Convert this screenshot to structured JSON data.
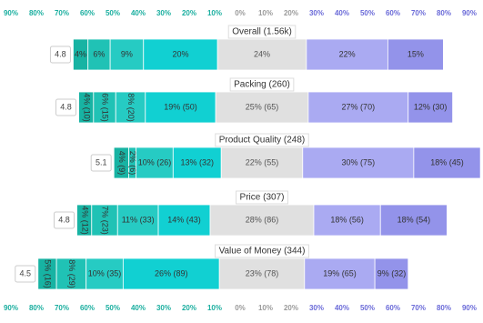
{
  "chart_data": {
    "type": "diverging-bar",
    "categories": [
      "Overall (1.56k)",
      "Packing (260)",
      "Product Quality (248)",
      "Price (307)",
      "Value of Money (344)"
    ],
    "scores": [
      4.8,
      4.8,
      5.1,
      4.8,
      4.5
    ],
    "series": [
      {
        "color": "#17b3a3",
        "values": [
          4,
          4,
          4,
          4,
          5
        ],
        "value_labels": [
          "4%",
          "4% (10)",
          "4% (9)",
          "4% (12)",
          "5% (16)"
        ]
      },
      {
        "color": "#20c2b5",
        "values": [
          6,
          6,
          2,
          7,
          8
        ],
        "value_labels": [
          "6%",
          "6% (15)",
          "2% (6)",
          "7% (23)",
          "8% (29)"
        ]
      },
      {
        "color": "#26cbc3",
        "values": [
          9,
          8,
          10,
          11,
          10
        ],
        "value_labels": [
          "9%",
          "8% (20)",
          "10% (26)",
          "11% (33)",
          "10% (35)"
        ]
      },
      {
        "color": "#11d0d2",
        "values": [
          20,
          19,
          13,
          14,
          26
        ],
        "value_labels": [
          "20%",
          "19% (50)",
          "13% (32)",
          "14% (43)",
          "26% (89)"
        ]
      },
      {
        "color": "#e0e0e0",
        "values": [
          24,
          25,
          22,
          28,
          23
        ],
        "value_labels": [
          "24%",
          "25% (65)",
          "22% (55)",
          "28% (86)",
          "23% (78)"
        ]
      },
      {
        "color": "#aaaaf2",
        "values": [
          22,
          27,
          30,
          18,
          19
        ],
        "value_labels": [
          "22%",
          "27% (70)",
          "30% (75)",
          "18% (56)",
          "19% (65)"
        ]
      },
      {
        "color": "#9393ea",
        "values": [
          15,
          12,
          18,
          18,
          9
        ],
        "value_labels": [
          "15%",
          "12% (30)",
          "18% (45)",
          "18% (54)",
          "9% (32)"
        ]
      }
    ],
    "xlim": [
      -90,
      90
    ],
    "xticks": [
      {
        "value": -90,
        "label": "90%",
        "color": "#1aae9f"
      },
      {
        "value": -80,
        "label": "80%",
        "color": "#1aae9f"
      },
      {
        "value": -70,
        "label": "70%",
        "color": "#1aae9f"
      },
      {
        "value": -60,
        "label": "60%",
        "color": "#1aae9f"
      },
      {
        "value": -50,
        "label": "50%",
        "color": "#1aae9f"
      },
      {
        "value": -40,
        "label": "40%",
        "color": "#1aae9f"
      },
      {
        "value": -30,
        "label": "30%",
        "color": "#1aae9f"
      },
      {
        "value": -20,
        "label": "20%",
        "color": "#1aae9f"
      },
      {
        "value": -10,
        "label": "10%",
        "color": "#1aae9f"
      },
      {
        "value": 0,
        "label": "0%",
        "color": "#9a9a9a"
      },
      {
        "value": 10,
        "label": "10%",
        "color": "#9a9a9a"
      },
      {
        "value": 20,
        "label": "20%",
        "color": "#9a9a9a"
      },
      {
        "value": 30,
        "label": "30%",
        "color": "#6a6ad8"
      },
      {
        "value": 40,
        "label": "40%",
        "color": "#6a6ad8"
      },
      {
        "value": 50,
        "label": "50%",
        "color": "#6a6ad8"
      },
      {
        "value": 60,
        "label": "60%",
        "color": "#6a6ad8"
      },
      {
        "value": 70,
        "label": "70%",
        "color": "#6a6ad8"
      },
      {
        "value": 80,
        "label": "80%",
        "color": "#6a6ad8"
      },
      {
        "value": 90,
        "label": "90%",
        "color": "#6a6ad8"
      }
    ]
  }
}
